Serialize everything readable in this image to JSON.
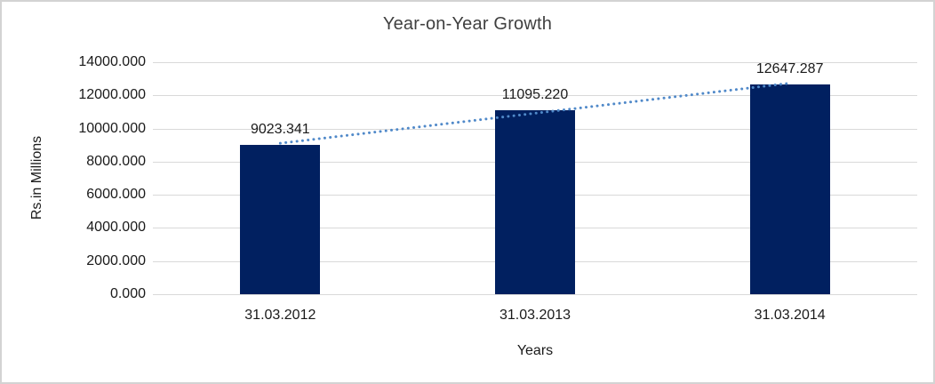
{
  "chart_data": {
    "type": "bar",
    "title": "Year-on-Year Growth",
    "xlabel": "Years",
    "ylabel": "Rs.in Millions",
    "categories": [
      "31.03.2012",
      "31.03.2013",
      "31.03.2014"
    ],
    "values": [
      9023.341,
      11095.22,
      12647.287
    ],
    "data_labels": [
      "9023.341",
      "11095.220",
      "12647.287"
    ],
    "y_ticks": [
      "14000.000",
      "12000.000",
      "10000.000",
      "8000.000",
      "6000.000",
      "4000.000",
      "2000.000",
      "0.000"
    ],
    "ylim": [
      0,
      14000
    ],
    "y_tick_step": 2000,
    "grid": true,
    "legend": false,
    "trendline": {
      "type": "linear",
      "style": "dotted"
    },
    "colors": {
      "bar": "#012060",
      "trendline": "#5089c9",
      "gridline": "#D9D9D9",
      "frame_border": "#D3D3D3",
      "text": "#1a1a1a",
      "title_text": "#3f3f3f",
      "background": "#FFFFFF"
    }
  }
}
